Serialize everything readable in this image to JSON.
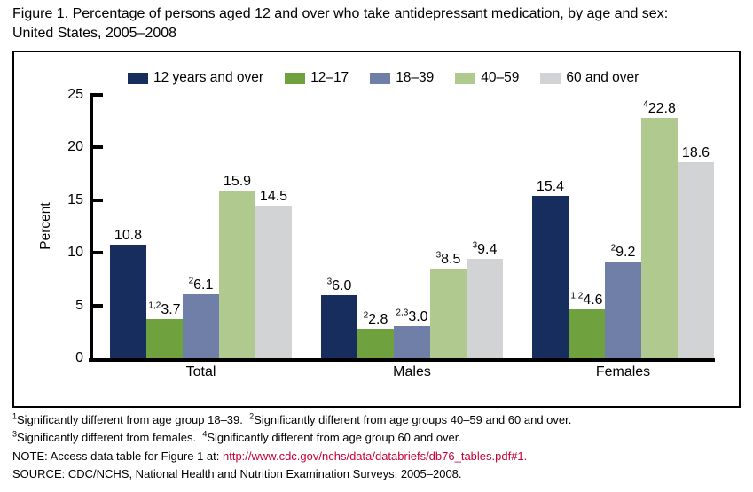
{
  "title": "Figure 1. Percentage of persons aged 12 and over who take antidepressant medication, by age and sex: United States, 2005–2008",
  "chart_data": {
    "type": "bar",
    "title": "Figure 1. Percentage of persons aged 12 and over who take antidepressant medication, by age and sex: United States, 2005–2008",
    "xlabel": "",
    "ylabel": "Percent",
    "ylim": [
      0,
      25
    ],
    "yticks": [
      0,
      5,
      10,
      15,
      20,
      25
    ],
    "grid": false,
    "legend_position": "top",
    "categories": [
      "Total",
      "Males",
      "Females"
    ],
    "series": [
      {
        "name": "12 years and over",
        "color": "#172d5e",
        "values": [
          10.8,
          6.0,
          15.4
        ],
        "sups": [
          "",
          "3",
          ""
        ]
      },
      {
        "name": "12–17",
        "color": "#6fa23e",
        "values": [
          3.7,
          2.8,
          4.6
        ],
        "sups": [
          "1,2",
          "2",
          "1,2"
        ]
      },
      {
        "name": "18–39",
        "color": "#6f7fa7",
        "values": [
          6.1,
          3.0,
          9.2
        ],
        "sups": [
          "2",
          "2,3",
          "2"
        ]
      },
      {
        "name": "40–59",
        "color": "#b0c98e",
        "values": [
          15.9,
          8.5,
          22.8
        ],
        "sups": [
          "",
          "3",
          "4"
        ]
      },
      {
        "name": "60 and over",
        "color": "#d1d3d4",
        "values": [
          14.5,
          9.4,
          18.6
        ],
        "sups": [
          "",
          "3",
          ""
        ]
      }
    ]
  },
  "footnotes": [
    {
      "sup": "1",
      "text": "Significantly different from age group 18–39."
    },
    {
      "sup": "2",
      "text": "Significantly different from age groups 40–59 and 60 and over."
    },
    {
      "sup": "3",
      "text": "Significantly different from females."
    },
    {
      "sup": "4",
      "text": "Significantly different from age group 60 and over."
    }
  ],
  "note": {
    "prefix": "NOTE: Access data table for Figure 1 at: ",
    "link": "http://www.cdc.gov/nchs/data/databriefs/db76_tables.pdf#1",
    "suffix": ".",
    "link_color": "#cc0033"
  },
  "source": "SOURCE: CDC/NCHS, National Health and Nutrition Examination Surveys, 2005–2008."
}
